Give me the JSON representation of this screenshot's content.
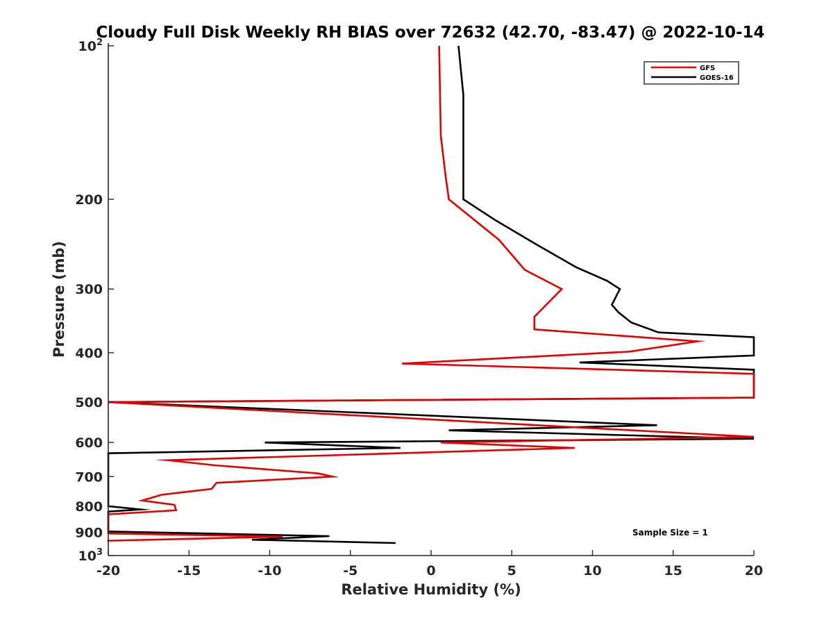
{
  "chart_data": {
    "type": "line",
    "title": "Cloudy Full Disk Weekly RH BIAS over 72632 (42.70, -83.47) @ 2022-10-14",
    "xlabel": "Relative Humidity (%)",
    "ylabel": "Pressure (mb)",
    "xlim": [
      -20,
      20
    ],
    "ylim": [
      100,
      1000
    ],
    "y_scale": "log",
    "y_direction": "reversed",
    "grid": false,
    "legend_position": "top-right",
    "x_ticks": [
      -20,
      -15,
      -10,
      -5,
      0,
      5,
      10,
      15,
      20
    ],
    "x_tick_labels": [
      "-20",
      "-15",
      "-10",
      "-5",
      "0",
      "5",
      "10",
      "15",
      "20"
    ],
    "y_ticks": [
      {
        "value": 100,
        "base": "10",
        "exp": "2",
        "label": ""
      },
      {
        "value": 200,
        "base": "",
        "exp": "",
        "label": "200"
      },
      {
        "value": 300,
        "base": "",
        "exp": "",
        "label": "300"
      },
      {
        "value": 400,
        "base": "",
        "exp": "",
        "label": "400"
      },
      {
        "value": 500,
        "base": "",
        "exp": "",
        "label": "500"
      },
      {
        "value": 600,
        "base": "",
        "exp": "",
        "label": "600"
      },
      {
        "value": 700,
        "base": "",
        "exp": "",
        "label": "700"
      },
      {
        "value": 800,
        "base": "",
        "exp": "",
        "label": "800"
      },
      {
        "value": 900,
        "base": "",
        "exp": "",
        "label": "900"
      },
      {
        "value": 1000,
        "base": "10",
        "exp": "3",
        "label": ""
      }
    ],
    "series": [
      {
        "name": "GFS",
        "color": "#e00000",
        "points": [
          [
            0.5,
            100
          ],
          [
            0.6,
            150
          ],
          [
            0.9,
            180
          ],
          [
            1.1,
            200
          ],
          [
            4.2,
            240
          ],
          [
            5.8,
            275
          ],
          [
            8.1,
            300
          ],
          [
            6.4,
            340
          ],
          [
            6.4,
            360
          ],
          [
            16.5,
            380
          ],
          [
            12.3,
            398
          ],
          [
            -1.8,
            420
          ],
          [
            20,
            440
          ],
          [
            20,
            490
          ],
          [
            -20,
            500
          ],
          [
            20,
            585
          ],
          [
            0.6,
            600
          ],
          [
            8.9,
            615
          ],
          [
            -16.3,
            650
          ],
          [
            -13.4,
            665
          ],
          [
            -7.0,
            690
          ],
          [
            -6.1,
            700
          ],
          [
            -13.3,
            720
          ],
          [
            -13.6,
            740
          ],
          [
            -16.7,
            760
          ],
          [
            -17.9,
            780
          ],
          [
            -15.9,
            795
          ],
          [
            -15.8,
            815
          ],
          [
            -20,
            830
          ],
          [
            -20,
            905
          ],
          [
            -9.2,
            918
          ],
          [
            -20,
            935
          ],
          [
            -20,
            940
          ]
        ]
      },
      {
        "name": "GOES-16",
        "color": "#000000",
        "points": [
          [
            1.7,
            100
          ],
          [
            2.0,
            125
          ],
          [
            2.0,
            200
          ],
          [
            4.0,
            220
          ],
          [
            6.5,
            245
          ],
          [
            9.0,
            272
          ],
          [
            10.9,
            289
          ],
          [
            11.7,
            300
          ],
          [
            11.2,
            322
          ],
          [
            11.6,
            333
          ],
          [
            12.4,
            349
          ],
          [
            14.1,
            365
          ],
          [
            20,
            373
          ],
          [
            20,
            405
          ],
          [
            9.2,
            418
          ],
          [
            20,
            432
          ],
          [
            20,
            490
          ],
          [
            -20,
            500
          ],
          [
            14.0,
            555
          ],
          [
            1.1,
            568
          ],
          [
            20,
            590
          ],
          [
            -10.3,
            600
          ],
          [
            -1.9,
            615
          ],
          [
            -20,
            630
          ],
          [
            -20,
            800
          ],
          [
            -18.0,
            812
          ],
          [
            -20,
            820
          ],
          [
            -20,
            897
          ],
          [
            -6.3,
            916
          ],
          [
            -11.1,
            931
          ],
          [
            -2.2,
            945
          ]
        ]
      }
    ],
    "legend": [
      {
        "label": "GFS",
        "color": "#e00000"
      },
      {
        "label": "GOES-16",
        "color": "#000000"
      }
    ],
    "annotations": [
      {
        "text": "Sample Size = 1"
      }
    ]
  }
}
